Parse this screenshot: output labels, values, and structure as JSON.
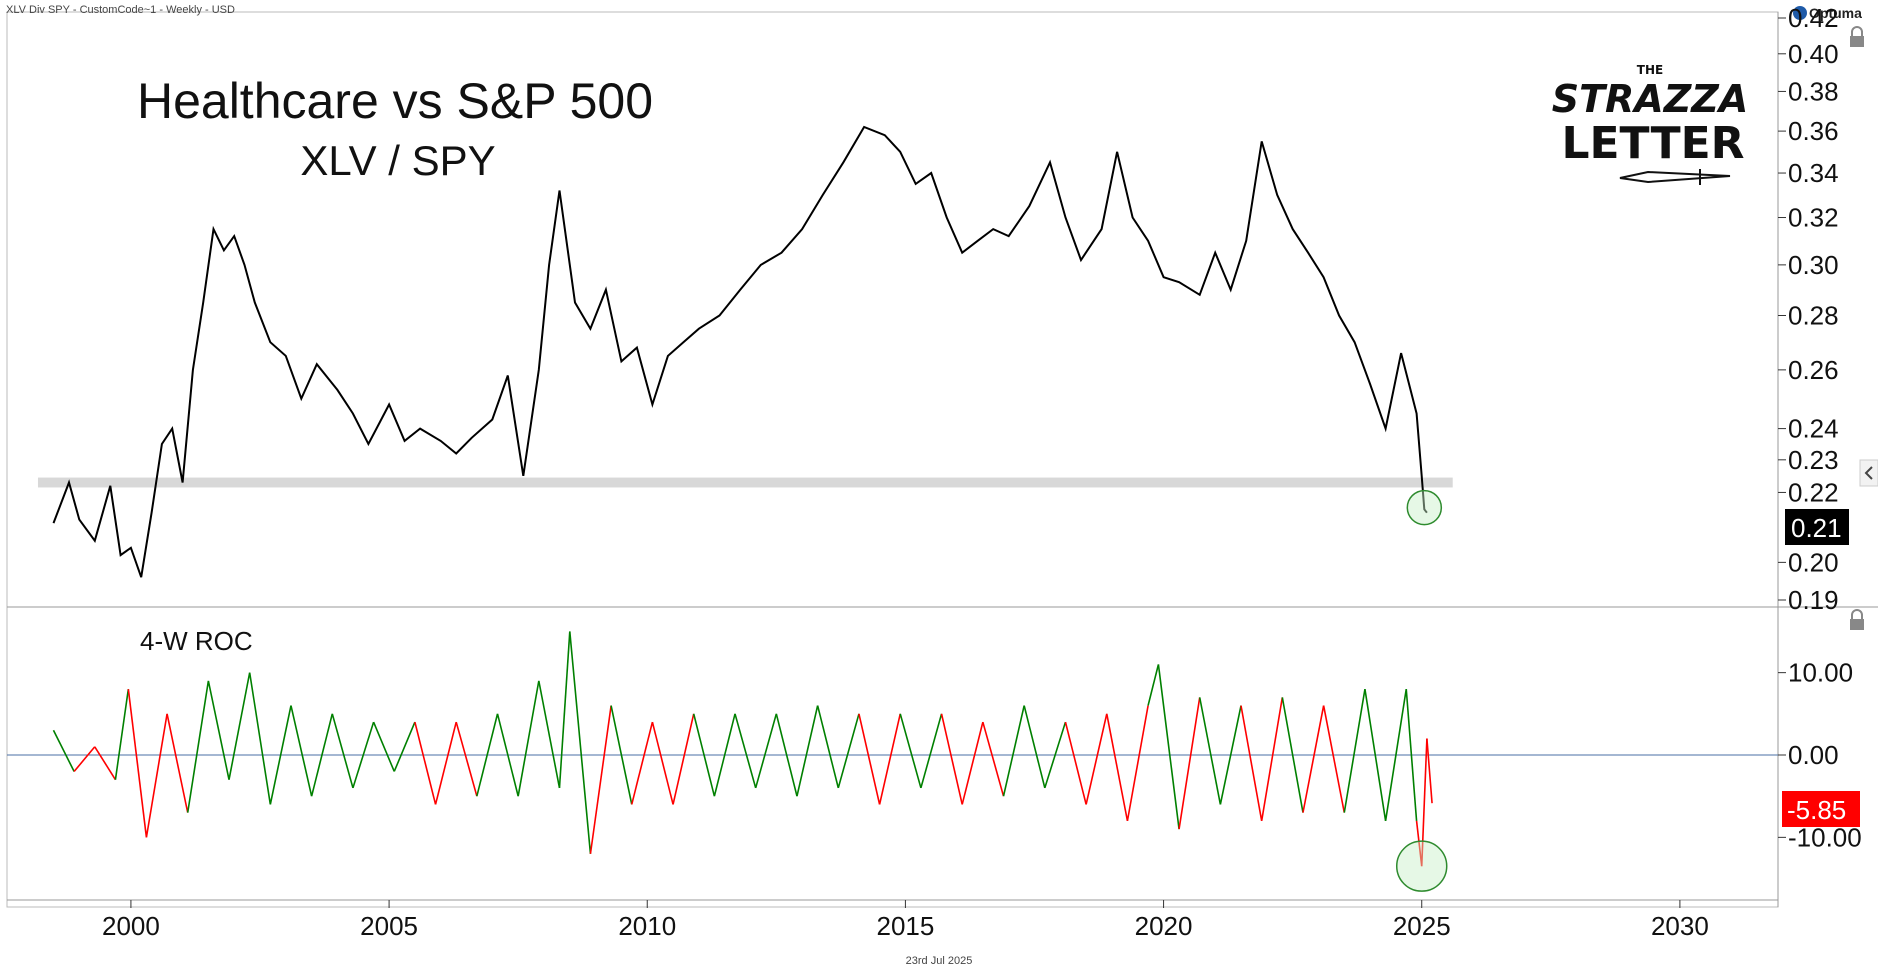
{
  "header": {
    "description": "XLV Div SPY - CustomCode~1 - Weekly - USD",
    "brand": "Optuma"
  },
  "footer": {
    "date": "23rd Jul 2025"
  },
  "logo": {
    "the": "THE",
    "line1": "STRAZZA",
    "line2": "LETTER"
  },
  "colors": {
    "price_line": "#000000",
    "support_band": "#d8d8d8",
    "roc_up": "#008000",
    "roc_down": "#ff0000",
    "zero_line": "#4a6fa5",
    "last_value_bg_price": "#000000",
    "last_value_bg_roc": "#ff0000",
    "highlight_circle": "#2e8b2e"
  },
  "chart_data": [
    {
      "type": "line",
      "title": "Healthcare vs S&P 500",
      "subtitle": "XLV / SPY",
      "scale": "log",
      "ylim": [
        0.19,
        0.42
      ],
      "xlim": [
        1997.6,
        2031.9
      ],
      "y_ticks": [
        0.42,
        0.4,
        0.38,
        0.36,
        0.34,
        0.32,
        0.3,
        0.28,
        0.26,
        0.24,
        0.23,
        0.22,
        0.2,
        0.19
      ],
      "y_tick_labels": [
        "0.42",
        "0.40",
        "0.38",
        "0.36",
        "0.34",
        "0.32",
        "0.30",
        "0.28",
        "0.26",
        "0.24",
        "0.23",
        "0.22",
        "0.20",
        "0.19"
      ],
      "last_value": "0.21",
      "support_band": [
        0.2215,
        0.2245
      ],
      "highlight_point": {
        "x": 2025.05,
        "y": 0.2155
      },
      "series": [
        {
          "x": [
            1998.5,
            1998.8,
            1999.0,
            1999.3,
            1999.6,
            1999.8,
            2000.0,
            2000.2,
            2000.4,
            2000.6,
            2000.8,
            2001.0,
            2001.2,
            2001.4,
            2001.6,
            2001.8,
            2002.0,
            2002.2,
            2002.4,
            2002.7,
            2003.0,
            2003.3,
            2003.6,
            2004.0,
            2004.3,
            2004.6,
            2005.0,
            2005.3,
            2005.6,
            2006.0,
            2006.3,
            2006.6,
            2007.0,
            2007.3,
            2007.6,
            2007.9,
            2008.1,
            2008.3,
            2008.6,
            2008.9,
            2009.2,
            2009.5,
            2009.8,
            2010.1,
            2010.4,
            2010.7,
            2011.0,
            2011.4,
            2011.8,
            2012.2,
            2012.6,
            2013.0,
            2013.4,
            2013.8,
            2014.2,
            2014.6,
            2014.9,
            2015.2,
            2015.5,
            2015.8,
            2016.1,
            2016.4,
            2016.7,
            2017.0,
            2017.4,
            2017.8,
            2018.1,
            2018.4,
            2018.8,
            2019.1,
            2019.4,
            2019.7,
            2020.0,
            2020.3,
            2020.7,
            2021.0,
            2021.3,
            2021.6,
            2021.9,
            2022.2,
            2022.5,
            2022.8,
            2023.1,
            2023.4,
            2023.7,
            2024.0,
            2024.3,
            2024.6,
            2024.9,
            2025.0,
            2025.05,
            2025.1
          ],
          "values": [
            0.211,
            0.223,
            0.212,
            0.206,
            0.222,
            0.202,
            0.204,
            0.196,
            0.214,
            0.235,
            0.24,
            0.223,
            0.26,
            0.285,
            0.315,
            0.306,
            0.312,
            0.3,
            0.285,
            0.27,
            0.265,
            0.25,
            0.262,
            0.253,
            0.245,
            0.235,
            0.248,
            0.236,
            0.24,
            0.236,
            0.232,
            0.237,
            0.243,
            0.258,
            0.225,
            0.26,
            0.3,
            0.332,
            0.285,
            0.275,
            0.29,
            0.263,
            0.268,
            0.248,
            0.265,
            0.27,
            0.275,
            0.28,
            0.29,
            0.3,
            0.305,
            0.315,
            0.33,
            0.345,
            0.362,
            0.358,
            0.35,
            0.335,
            0.34,
            0.32,
            0.305,
            0.31,
            0.315,
            0.312,
            0.325,
            0.345,
            0.32,
            0.302,
            0.315,
            0.35,
            0.32,
            0.31,
            0.295,
            0.293,
            0.288,
            0.305,
            0.29,
            0.31,
            0.355,
            0.33,
            0.315,
            0.305,
            0.295,
            0.28,
            0.27,
            0.255,
            0.24,
            0.266,
            0.245,
            0.225,
            0.215,
            0.214
          ]
        }
      ]
    },
    {
      "type": "bar",
      "title": "4-W ROC",
      "ylim": [
        -17,
        17
      ],
      "y_ticks": [
        10,
        0,
        -10
      ],
      "y_tick_labels": [
        "10.00",
        "0.00",
        "-10.00"
      ],
      "last_value": "-5.85",
      "highlight_point": {
        "x": 2025.0,
        "y": -13.5
      },
      "series": [
        {
          "x": [
            1998.5,
            1998.9,
            1999.3,
            1999.7,
            1999.95,
            2000.3,
            2000.7,
            2001.1,
            2001.5,
            2001.9,
            2002.3,
            2002.7,
            2003.1,
            2003.5,
            2003.9,
            2004.3,
            2004.7,
            2005.1,
            2005.5,
            2005.9,
            2006.3,
            2006.7,
            2007.1,
            2007.5,
            2007.9,
            2008.3,
            2008.5,
            2008.9,
            2009.3,
            2009.7,
            2010.1,
            2010.5,
            2010.9,
            2011.3,
            2011.7,
            2012.1,
            2012.5,
            2012.9,
            2013.3,
            2013.7,
            2014.1,
            2014.5,
            2014.9,
            2015.3,
            2015.7,
            2016.1,
            2016.5,
            2016.9,
            2017.3,
            2017.7,
            2018.1,
            2018.5,
            2018.9,
            2019.3,
            2019.7,
            2019.9,
            2020.3,
            2020.7,
            2021.1,
            2021.5,
            2021.9,
            2022.3,
            2022.7,
            2023.1,
            2023.5,
            2023.9,
            2024.3,
            2024.7,
            2024.9,
            2025.0,
            2025.1,
            2025.2
          ],
          "values": [
            3,
            -2,
            1,
            -3,
            8,
            -10,
            5,
            -7,
            9,
            -3,
            10,
            -6,
            6,
            -5,
            5,
            -4,
            4,
            -2,
            4,
            -6,
            4,
            -5,
            5,
            -5,
            9,
            -4,
            15,
            -12,
            6,
            -6,
            4,
            -6,
            5,
            -5,
            5,
            -4,
            5,
            -5,
            6,
            -4,
            5,
            -6,
            5,
            -4,
            5,
            -6,
            4,
            -5,
            6,
            -4,
            4,
            -6,
            5,
            -8,
            6,
            11,
            -9,
            7,
            -6,
            6,
            -8,
            7,
            -7,
            6,
            -7,
            8,
            -8,
            8,
            -8,
            -13.5,
            2,
            -5.85
          ]
        }
      ]
    }
  ],
  "x_axis": {
    "ticks": [
      2000,
      2005,
      2010,
      2015,
      2020,
      2025,
      2030
    ],
    "labels": [
      "2000",
      "2005",
      "2010",
      "2015",
      "2020",
      "2025",
      "2030"
    ]
  }
}
